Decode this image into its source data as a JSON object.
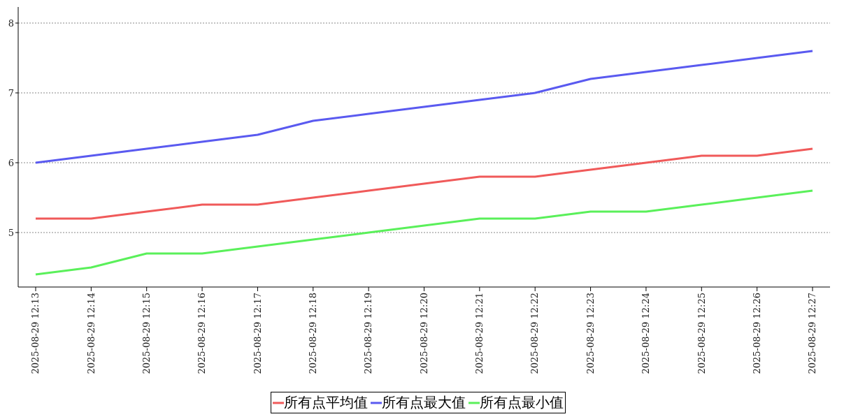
{
  "chart_data": {
    "type": "line",
    "categories": [
      "2025-08-29 12:13",
      "2025-08-29 12:14",
      "2025-08-29 12:15",
      "2025-08-29 12:16",
      "2025-08-29 12:17",
      "2025-08-29 12:18",
      "2025-08-29 12:19",
      "2025-08-29 12:20",
      "2025-08-29 12:21",
      "2025-08-29 12:22",
      "2025-08-29 12:23",
      "2025-08-29 12:24",
      "2025-08-29 12:25",
      "2025-08-29 12:26",
      "2025-08-29 12:27"
    ],
    "series": [
      {
        "name": "所有点平均值",
        "color": "#f05a5a",
        "values": [
          5.2,
          5.2,
          5.3,
          5.4,
          5.4,
          5.5,
          5.6,
          5.7,
          5.8,
          5.8,
          5.9,
          6.0,
          6.1,
          6.1,
          6.2
        ]
      },
      {
        "name": "所有点最大值",
        "color": "#5a5af0",
        "values": [
          6.0,
          6.1,
          6.2,
          6.3,
          6.4,
          6.6,
          6.7,
          6.8,
          6.9,
          7.0,
          7.2,
          7.3,
          7.4,
          7.5,
          7.6
        ]
      },
      {
        "name": "所有点最小值",
        "color": "#5af05a",
        "values": [
          4.4,
          4.5,
          4.7,
          4.7,
          4.8,
          4.9,
          5.0,
          5.1,
          5.2,
          5.2,
          5.3,
          5.3,
          5.4,
          5.5,
          5.6
        ]
      }
    ],
    "ylim": [
      4.22,
      8.23
    ],
    "yticks": [
      5,
      6,
      7,
      8
    ],
    "grid": "y",
    "legend": "bottom",
    "marker": "none",
    "line_style": "solid"
  }
}
